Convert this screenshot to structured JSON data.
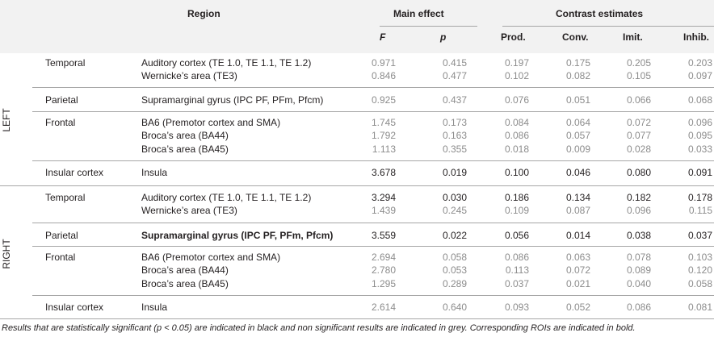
{
  "header": {
    "region": "Region",
    "main_effect": "Main effect",
    "contrast_estimates": "Contrast estimates",
    "f": "F",
    "p": "p",
    "prod": "Prod.",
    "conv": "Conv.",
    "imit": "Imit.",
    "inhib": "Inhib."
  },
  "sides": {
    "left": "LEFT",
    "right": "RIGHT"
  },
  "groups": {
    "left_temporal": "Temporal",
    "left_parietal": "Parietal",
    "left_frontal": "Frontal",
    "left_insular": "Insular cortex",
    "right_temporal": "Temporal",
    "right_parietal": "Parietal",
    "right_frontal": "Frontal",
    "right_insular": "Insular cortex"
  },
  "rows": [
    {
      "region": "Auditory cortex (TE 1.0, TE 1.1, TE 1.2)",
      "f": "0.971",
      "p": "0.415",
      "prod": "0.197",
      "conv": "0.175",
      "imit": "0.205",
      "inhib": "0.203"
    },
    {
      "region": "Wernicke’s area (TE3)",
      "f": "0.846",
      "p": "0.477",
      "prod": "0.102",
      "conv": "0.082",
      "imit": "0.105",
      "inhib": "0.097"
    },
    {
      "region": "Supramarginal gyrus (IPC PF, PFm, Pfcm)",
      "f": "0.925",
      "p": "0.437",
      "prod": "0.076",
      "conv": "0.051",
      "imit": "0.066",
      "inhib": "0.068"
    },
    {
      "region": "BA6 (Premotor cortex and SMA)",
      "f": "1.745",
      "p": "0.173",
      "prod": "0.084",
      "conv": "0.064",
      "imit": "0.072",
      "inhib": "0.096"
    },
    {
      "region": "Broca’s area (BA44)",
      "f": "1.792",
      "p": "0.163",
      "prod": "0.086",
      "conv": "0.057",
      "imit": "0.077",
      "inhib": "0.095"
    },
    {
      "region": "Broca’s area (BA45)",
      "f": "1.113",
      "p": "0.355",
      "prod": "0.018",
      "conv": "0.009",
      "imit": "0.028",
      "inhib": "0.033"
    },
    {
      "region": "Insula",
      "f": "3.678",
      "p": "0.019",
      "prod": "0.100",
      "conv": "0.046",
      "imit": "0.080",
      "inhib": "0.091"
    },
    {
      "region": "Auditory cortex (TE 1.0, TE 1.1, TE 1.2)",
      "f": "3.294",
      "p": "0.030",
      "prod": "0.186",
      "conv": "0.134",
      "imit": "0.182",
      "inhib": "0.178"
    },
    {
      "region": "Wernicke’s area (TE3)",
      "f": "1.439",
      "p": "0.245",
      "prod": "0.109",
      "conv": "0.087",
      "imit": "0.096",
      "inhib": "0.115"
    },
    {
      "region": "Supramarginal gyrus (IPC PF, PFm, Pfcm)",
      "f": "3.559",
      "p": "0.022",
      "prod": "0.056",
      "conv": "0.014",
      "imit": "0.038",
      "inhib": "0.037"
    },
    {
      "region": "BA6 (Premotor cortex and SMA)",
      "f": "2.694",
      "p": "0.058",
      "prod": "0.086",
      "conv": "0.063",
      "imit": "0.078",
      "inhib": "0.103"
    },
    {
      "region": "Broca’s area (BA44)",
      "f": "2.780",
      "p": "0.053",
      "prod": "0.113",
      "conv": "0.072",
      "imit": "0.089",
      "inhib": "0.120"
    },
    {
      "region": "Broca’s area (BA45)",
      "f": "1.295",
      "p": "0.289",
      "prod": "0.037",
      "conv": "0.021",
      "imit": "0.040",
      "inhib": "0.058"
    },
    {
      "region": "Insula",
      "f": "2.614",
      "p": "0.640",
      "prod": "0.093",
      "conv": "0.052",
      "imit": "0.086",
      "inhib": "0.081"
    }
  ],
  "footnote": "Results that are statistically significant (p < 0.05) are indicated in black and non significant results are indicated in grey. Corresponding ROIs are indicated in bold.",
  "colors": {
    "significant": "#231f20",
    "non_significant": "#8c8c8c",
    "header_bg": "#f2f2f2",
    "rule": "#a6a6a6"
  }
}
